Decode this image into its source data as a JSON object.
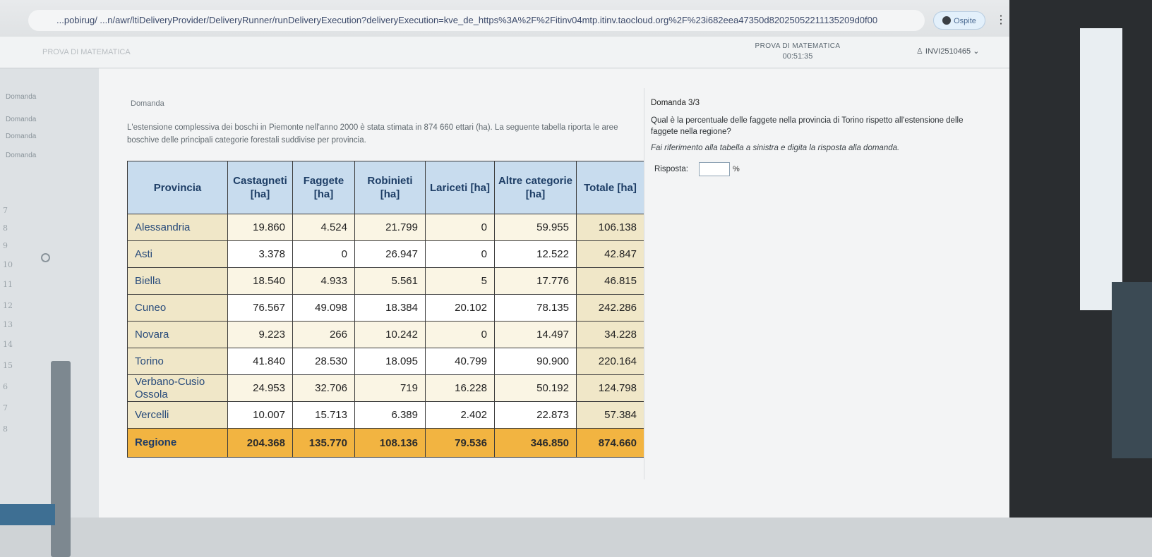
{
  "browser": {
    "url": "...pobirug/ ...n/awr/ltiDeliveryProvider/DeliveryRunner/runDeliveryExecution?deliveryExecution=kve_de_https%3A%2F%2Fitinv04mtp.itinv.taocloud.org%2F%23i682eea47350d82025052211135209d0f00",
    "guest_label": "Ospite",
    "menu_glyph": "⋮"
  },
  "header": {
    "test_title": "PROVA DI MATEMATICA",
    "timer": "00:51:35",
    "user_id": "INVI2510465",
    "left_faded": "PROVA DI MATEMATICA"
  },
  "nav": {
    "items": [
      "Domanda",
      "Domanda",
      "Domanda",
      "Domanda"
    ],
    "numbers": [
      "7",
      "8",
      "9",
      "10",
      "11",
      "12",
      "13",
      "14",
      "15",
      "6",
      "7",
      "8"
    ]
  },
  "left_panel": {
    "section_title": "Domanda",
    "intro": "L'estensione complessiva dei boschi in Piemonte nell'anno 2000 è stata stimata in  874 660 ettari (ha). La seguente tabella riporta le aree boschive delle principali categorie forestali suddivise per provincia."
  },
  "table": {
    "headers": [
      "Provincia",
      "Castagneti [ha]",
      "Faggete [ha]",
      "Robinieti [ha]",
      "Lariceti [ha]",
      "Altre categorie [ha]",
      "Totale [ha]"
    ],
    "rows": [
      [
        "Alessandria",
        "19.860",
        "4.524",
        "21.799",
        "0",
        "59.955",
        "106.138"
      ],
      [
        "Asti",
        "3.378",
        "0",
        "26.947",
        "0",
        "12.522",
        "42.847"
      ],
      [
        "Biella",
        "18.540",
        "4.933",
        "5.561",
        "5",
        "17.776",
        "46.815"
      ],
      [
        "Cuneo",
        "76.567",
        "49.098",
        "18.384",
        "20.102",
        "78.135",
        "242.286"
      ],
      [
        "Novara",
        "9.223",
        "266",
        "10.242",
        "0",
        "14.497",
        "34.228"
      ],
      [
        "Torino",
        "41.840",
        "28.530",
        "18.095",
        "40.799",
        "90.900",
        "220.164"
      ],
      [
        "Verbano-Cusio Ossola",
        "24.953",
        "32.706",
        "719",
        "16.228",
        "50.192",
        "124.798"
      ],
      [
        "Vercelli",
        "10.007",
        "15.713",
        "6.389",
        "2.402",
        "22.873",
        "57.384"
      ]
    ],
    "total_row": [
      "Regione",
      "204.368",
      "135.770",
      "108.136",
      "79.536",
      "346.850",
      "874.660"
    ]
  },
  "right_panel": {
    "title": "Domanda 3/3",
    "question": "Qual è la percentuale delle faggete nella provincia di Torino rispetto all'estensione delle faggete nella regione?",
    "instruction": "Fai riferimento alla tabella a sinistra e digita la risposta alla domanda.",
    "answer_label": "Risposta:",
    "answer_value": "",
    "answer_unit": "%"
  }
}
